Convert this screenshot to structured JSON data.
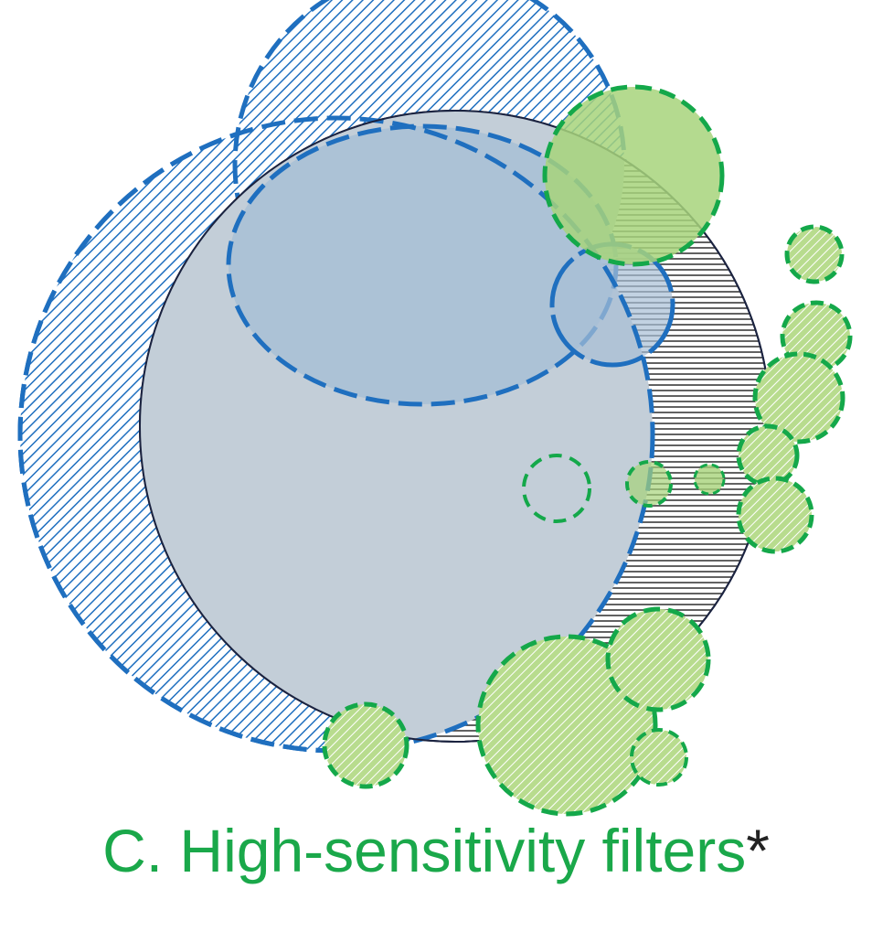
{
  "caption": {
    "text": "C. High-sensitivity filters",
    "marker": "*"
  },
  "colors": {
    "caption_green": "#1aa84a",
    "blue_stroke": "#1f6fbf",
    "green_stroke": "#14a84a",
    "green_fill": "#a7d37b",
    "gray_fill": "#c3ced8",
    "inner_blue_fill": "#a8bfd6",
    "dark_outline": "#1b2340"
  },
  "legend_shapes": {
    "big_gray_circle": "solid-outline",
    "blue_circles": "dashed-hatched",
    "green_circles": "dashed-hatched",
    "right_region": "horizontal-lines"
  }
}
